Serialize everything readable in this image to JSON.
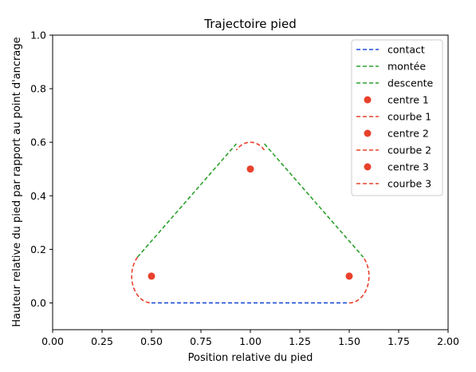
{
  "chart_data": {
    "type": "line",
    "title": "Trajectoire pied",
    "xlabel": "Position relative du pied",
    "ylabel": "Hauteur relative du pied par rapport au point d'ancrage",
    "xlim": [
      0.0,
      2.0
    ],
    "ylim": [
      -0.1,
      1.0
    ],
    "xticks": [
      0.0,
      0.25,
      0.5,
      0.75,
      1.0,
      1.25,
      1.5,
      1.75,
      2.0
    ],
    "xtick_labels": [
      "0.00",
      "0.25",
      "0.50",
      "0.75",
      "1.00",
      "1.25",
      "1.50",
      "1.75",
      "2.00"
    ],
    "yticks": [
      0.0,
      0.2,
      0.4,
      0.6,
      0.8,
      1.0
    ],
    "ytick_labels": [
      "0.0",
      "0.2",
      "0.4",
      "0.6",
      "0.8",
      "1.0"
    ],
    "grid": false,
    "legend_position": "upper right",
    "series": [
      {
        "name": "contact",
        "style": "dashed-line",
        "color": "#1f4fd6",
        "x": [
          0.5,
          1.5
        ],
        "y": [
          0.0,
          0.0
        ]
      },
      {
        "name": "montée",
        "style": "dashed-line",
        "color": "#2ca02c",
        "x": [
          0.429,
          0.929
        ],
        "y": [
          0.171,
          0.594
        ]
      },
      {
        "name": "descente",
        "style": "dashed-line",
        "color": "#2ca02c",
        "x": [
          1.071,
          1.571
        ],
        "y": [
          0.594,
          0.171
        ]
      },
      {
        "name": "centre 1",
        "style": "marker",
        "color": "#e8412c",
        "x": [
          0.5
        ],
        "y": [
          0.1
        ]
      },
      {
        "name": "courbe 1",
        "style": "dashed-arc",
        "color": "#e8412c",
        "center": [
          0.5,
          0.1
        ],
        "radius": 0.1,
        "angle_start_deg": 135,
        "angle_end_deg": 270
      },
      {
        "name": "centre 2",
        "style": "marker",
        "color": "#e8412c",
        "x": [
          1.0
        ],
        "y": [
          0.5
        ]
      },
      {
        "name": "courbe 2",
        "style": "dashed-arc",
        "color": "#e8412c",
        "center": [
          1.0,
          0.5
        ],
        "radius": 0.1,
        "angle_start_deg": 45,
        "angle_end_deg": 135
      },
      {
        "name": "centre 3",
        "style": "marker",
        "color": "#e8412c",
        "x": [
          1.5
        ],
        "y": [
          0.1
        ]
      },
      {
        "name": "courbe 3",
        "style": "dashed-arc",
        "color": "#e8412c",
        "center": [
          1.5,
          0.1
        ],
        "radius": 0.1,
        "angle_start_deg": -90,
        "angle_end_deg": 45
      }
    ]
  }
}
